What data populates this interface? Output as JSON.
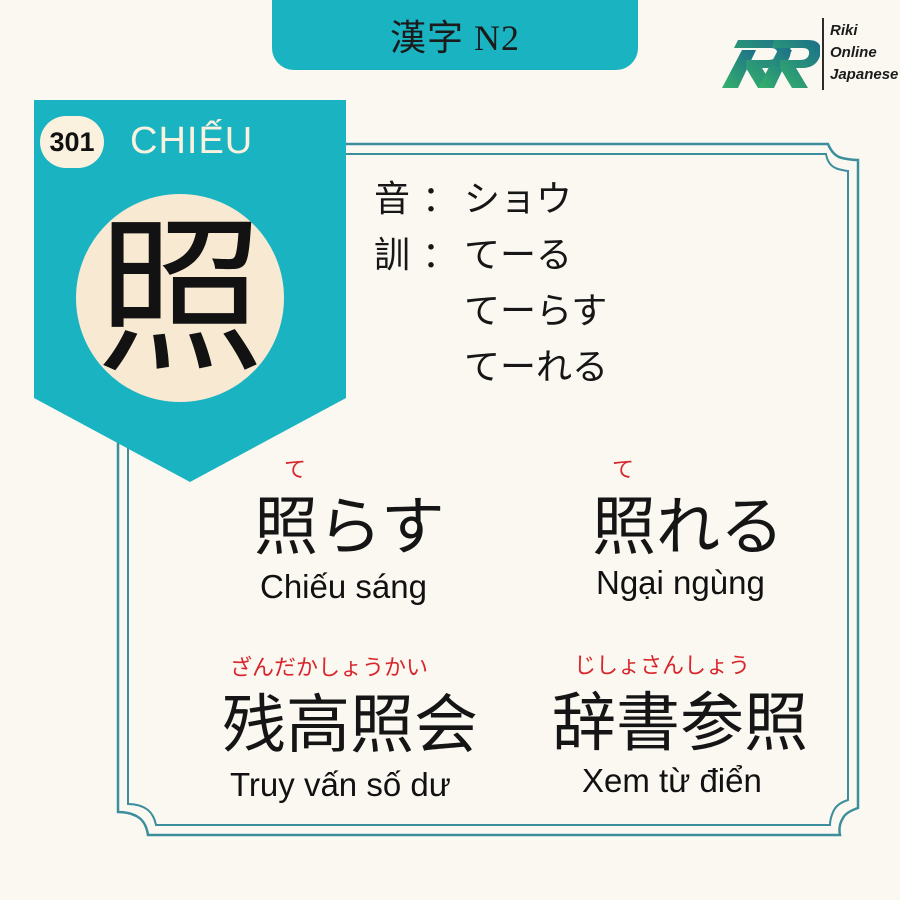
{
  "header": {
    "title": "漢字 N2"
  },
  "logo": {
    "line1": "Riki",
    "line2": "Online",
    "line3": "Japanese"
  },
  "card": {
    "number": "301",
    "han_viet": "CHIẾU",
    "kanji": "照",
    "on_label": "音",
    "kun_label": "訓",
    "separator": "：",
    "on_reading": "ショウ",
    "kun_readings": [
      "てーる",
      "てーらす",
      "てーれる"
    ]
  },
  "words": [
    {
      "furigana": "て",
      "word": "照らす",
      "meaning": "Chiếu sáng"
    },
    {
      "furigana": "て",
      "word": "照れる",
      "meaning": "Ngại ngùng"
    },
    {
      "furigana": "ざんだかしょうかい",
      "word": "残高照会",
      "meaning": "Truy vấn số dư"
    },
    {
      "furigana": "じしょさんしょう",
      "word": "辞書参照",
      "meaning": "Xem từ điển"
    }
  ],
  "colors": {
    "teal": "#1ab3c1",
    "frame": "#2e8b9a",
    "cream": "#f8e9d3",
    "background": "#fbf8f2",
    "furigana": "#d8262c"
  }
}
